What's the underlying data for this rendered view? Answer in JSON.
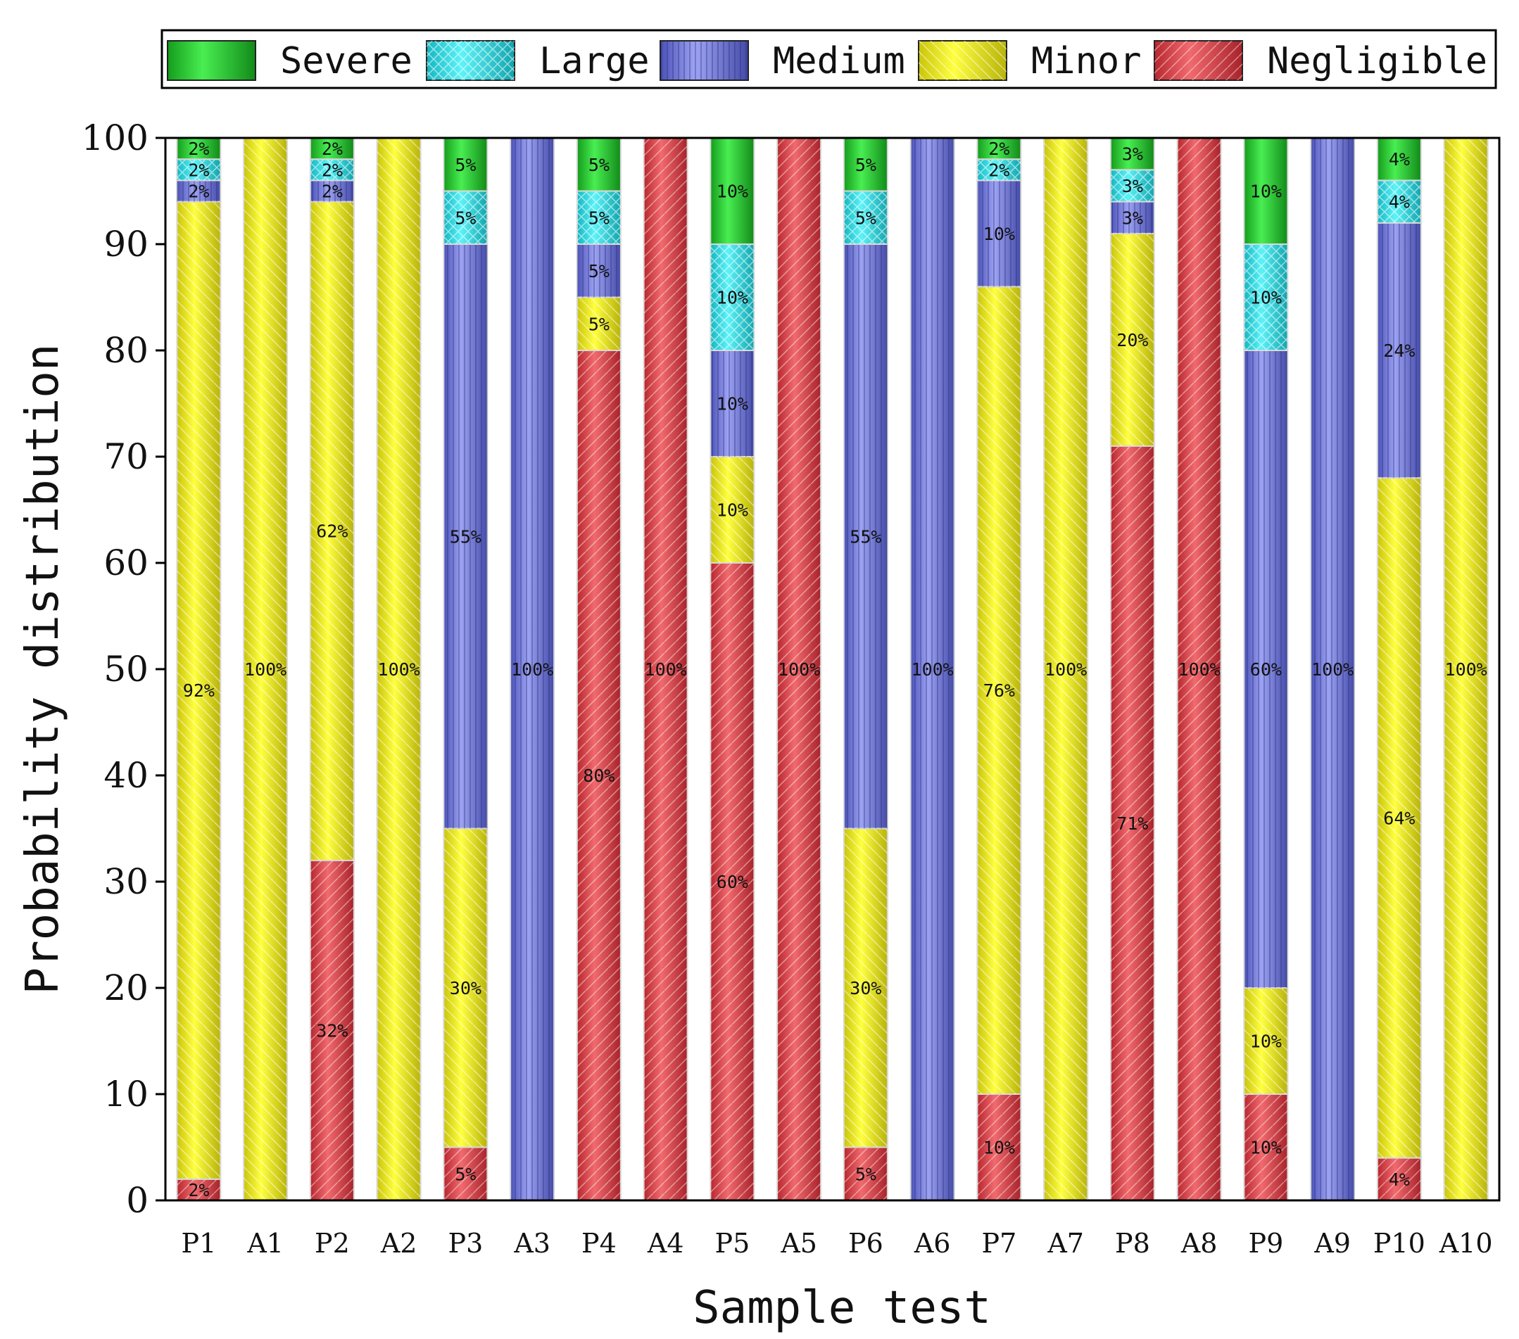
{
  "chart_data": {
    "type": "bar",
    "stacked": true,
    "title": "",
    "xlabel": "Sample test",
    "ylabel": "Probability distribution",
    "ylim": [
      0,
      100
    ],
    "yticks": [
      "0",
      "10",
      "20",
      "30",
      "40",
      "50",
      "60",
      "70",
      "80",
      "90",
      "100"
    ],
    "legend_position": "top",
    "categories": [
      "P1",
      "A1",
      "P2",
      "A2",
      "P3",
      "A3",
      "P4",
      "A4",
      "P5",
      "A5",
      "P6",
      "A6",
      "P7",
      "A7",
      "P8",
      "A8",
      "P9",
      "A9",
      "P10",
      "A10"
    ],
    "series": [
      {
        "name": "Negligible",
        "color": "#e0454c",
        "values": [
          2,
          0,
          32,
          0,
          5,
          0,
          80,
          100,
          60,
          100,
          5,
          0,
          10,
          0,
          71,
          100,
          10,
          0,
          4,
          0
        ],
        "labels": [
          "2%",
          "",
          "32%",
          "",
          "5%",
          "",
          "80%",
          "100%",
          "60%",
          "100%",
          "5%",
          "",
          "10%",
          "",
          "71%",
          "100%",
          "10%",
          "",
          "4%",
          ""
        ]
      },
      {
        "name": "Minor",
        "color": "#f5f01a",
        "values": [
          92,
          100,
          62,
          100,
          30,
          0,
          5,
          0,
          10,
          0,
          30,
          0,
          76,
          100,
          20,
          0,
          10,
          0,
          64,
          100
        ],
        "labels": [
          "92%",
          "100%",
          "62%",
          "100%",
          "30%",
          "",
          "5%",
          "",
          "10%",
          "",
          "30%",
          "",
          "76%",
          "100%",
          "20%",
          "",
          "10%",
          "",
          "64%",
          "100%"
        ]
      },
      {
        "name": "Medium",
        "color": "#7f86e8",
        "values": [
          2,
          0,
          2,
          0,
          55,
          100,
          5,
          0,
          10,
          0,
          55,
          100,
          10,
          0,
          3,
          0,
          60,
          100,
          24,
          0
        ],
        "labels": [
          "2%",
          "",
          "2%",
          "",
          "55%",
          "100%",
          "5%",
          "",
          "10%",
          "",
          "55%",
          "100%",
          "10%",
          "",
          "3%",
          "",
          "60%",
          "100%",
          "24%",
          ""
        ]
      },
      {
        "name": "Large",
        "color": "#26e1ea",
        "values": [
          2,
          0,
          2,
          0,
          5,
          0,
          5,
          0,
          10,
          0,
          5,
          0,
          2,
          0,
          3,
          0,
          10,
          0,
          4,
          0
        ],
        "labels": [
          "2%",
          "",
          "2%",
          "",
          "5%",
          "",
          "5%",
          "",
          "10%",
          "",
          "5%",
          "",
          "2%",
          "",
          "3%",
          "",
          "10%",
          "",
          "4%",
          ""
        ]
      },
      {
        "name": "Severe",
        "color": "#22cc2c",
        "values": [
          2,
          0,
          2,
          0,
          5,
          0,
          5,
          0,
          10,
          0,
          5,
          0,
          2,
          0,
          3,
          0,
          10,
          0,
          4,
          0
        ],
        "labels": [
          "2%",
          "",
          "2%",
          "",
          "5%",
          "",
          "5%",
          "",
          "10%",
          "",
          "5%",
          "",
          "2%",
          "",
          "3%",
          "",
          "10%",
          "",
          "4%",
          ""
        ]
      }
    ],
    "legend_order": [
      "Severe",
      "Large",
      "Medium",
      "Minor",
      "Negligible"
    ]
  }
}
